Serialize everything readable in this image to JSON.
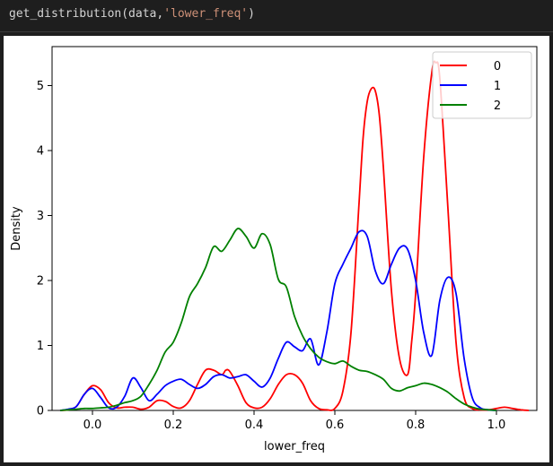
{
  "code": {
    "func": "get_distribution",
    "open": "(data,",
    "arg": "'lower_freq'",
    "close": ")"
  },
  "chart_data": {
    "type": "line",
    "xlabel": "lower_freq",
    "ylabel": "Density",
    "xlim": [
      -0.1,
      1.1
    ],
    "ylim": [
      0,
      5.6
    ],
    "x_ticks": [
      "0.0",
      "0.2",
      "0.4",
      "0.6",
      "0.8",
      "1.0"
    ],
    "y_ticks": [
      "0",
      "1",
      "2",
      "3",
      "4",
      "5"
    ],
    "legend_position": "top-right",
    "series": [
      {
        "name": "0",
        "color": "#ff0000",
        "x": [
          -0.08,
          -0.06,
          -0.04,
          -0.02,
          0.0,
          0.02,
          0.04,
          0.06,
          0.08,
          0.1,
          0.12,
          0.14,
          0.16,
          0.18,
          0.2,
          0.22,
          0.24,
          0.26,
          0.28,
          0.3,
          0.32,
          0.33,
          0.34,
          0.36,
          0.38,
          0.4,
          0.42,
          0.44,
          0.46,
          0.48,
          0.5,
          0.52,
          0.54,
          0.56,
          0.58,
          0.6,
          0.62,
          0.64,
          0.66,
          0.67,
          0.68,
          0.69,
          0.7,
          0.71,
          0.72,
          0.74,
          0.76,
          0.78,
          0.79,
          0.8,
          0.82,
          0.84,
          0.85,
          0.86,
          0.88,
          0.9,
          0.92,
          0.94,
          0.96,
          0.98,
          1.0,
          1.02,
          1.04,
          1.06,
          1.08
        ],
        "y": [
          0.0,
          0.01,
          0.06,
          0.25,
          0.38,
          0.32,
          0.12,
          0.04,
          0.05,
          0.05,
          0.02,
          0.05,
          0.15,
          0.14,
          0.06,
          0.04,
          0.15,
          0.4,
          0.62,
          0.62,
          0.55,
          0.62,
          0.6,
          0.38,
          0.12,
          0.04,
          0.05,
          0.18,
          0.4,
          0.55,
          0.55,
          0.42,
          0.15,
          0.03,
          0.01,
          0.03,
          0.3,
          1.2,
          3.2,
          4.2,
          4.75,
          4.95,
          4.92,
          4.55,
          3.75,
          1.85,
          0.8,
          0.55,
          1.05,
          1.8,
          3.9,
          5.2,
          5.35,
          5.1,
          3.1,
          1.05,
          0.2,
          0.03,
          0.01,
          0.01,
          0.03,
          0.05,
          0.03,
          0.01,
          0.0
        ]
      },
      {
        "name": "1",
        "color": "#0000ff",
        "x": [
          -0.08,
          -0.06,
          -0.04,
          -0.02,
          0.0,
          0.02,
          0.04,
          0.06,
          0.08,
          0.1,
          0.12,
          0.14,
          0.16,
          0.18,
          0.2,
          0.22,
          0.24,
          0.26,
          0.28,
          0.3,
          0.32,
          0.34,
          0.36,
          0.38,
          0.4,
          0.42,
          0.44,
          0.46,
          0.48,
          0.5,
          0.52,
          0.54,
          0.56,
          0.58,
          0.6,
          0.62,
          0.64,
          0.66,
          0.68,
          0.7,
          0.72,
          0.74,
          0.76,
          0.78,
          0.8,
          0.82,
          0.84,
          0.86,
          0.88,
          0.9,
          0.92,
          0.94,
          0.96,
          0.98,
          1.0
        ],
        "y": [
          0.0,
          0.02,
          0.06,
          0.25,
          0.34,
          0.2,
          0.04,
          0.05,
          0.22,
          0.5,
          0.35,
          0.15,
          0.25,
          0.38,
          0.45,
          0.48,
          0.4,
          0.34,
          0.4,
          0.52,
          0.55,
          0.5,
          0.52,
          0.55,
          0.45,
          0.36,
          0.5,
          0.8,
          1.05,
          0.98,
          0.92,
          1.1,
          0.7,
          1.2,
          1.95,
          2.25,
          2.5,
          2.75,
          2.68,
          2.15,
          1.95,
          2.25,
          2.5,
          2.48,
          2.0,
          1.2,
          0.85,
          1.7,
          2.05,
          1.8,
          0.8,
          0.2,
          0.04,
          0.01,
          0.0
        ]
      },
      {
        "name": "2",
        "color": "#008000",
        "x": [
          -0.08,
          -0.06,
          -0.04,
          -0.02,
          0.0,
          0.02,
          0.04,
          0.06,
          0.08,
          0.1,
          0.12,
          0.14,
          0.16,
          0.18,
          0.2,
          0.22,
          0.24,
          0.26,
          0.28,
          0.3,
          0.32,
          0.34,
          0.36,
          0.38,
          0.4,
          0.42,
          0.44,
          0.46,
          0.48,
          0.5,
          0.52,
          0.54,
          0.56,
          0.58,
          0.6,
          0.62,
          0.64,
          0.66,
          0.68,
          0.7,
          0.72,
          0.74,
          0.76,
          0.78,
          0.8,
          0.82,
          0.84,
          0.86,
          0.88,
          0.9,
          0.92,
          0.94,
          0.96,
          0.98,
          1.0
        ],
        "y": [
          0.0,
          0.01,
          0.02,
          0.03,
          0.03,
          0.04,
          0.05,
          0.08,
          0.12,
          0.15,
          0.22,
          0.4,
          0.62,
          0.9,
          1.05,
          1.35,
          1.75,
          1.95,
          2.2,
          2.52,
          2.45,
          2.62,
          2.8,
          2.68,
          2.5,
          2.72,
          2.55,
          2.02,
          1.9,
          1.45,
          1.15,
          0.95,
          0.82,
          0.75,
          0.72,
          0.76,
          0.68,
          0.62,
          0.6,
          0.55,
          0.48,
          0.34,
          0.3,
          0.35,
          0.38,
          0.42,
          0.4,
          0.35,
          0.28,
          0.18,
          0.1,
          0.05,
          0.02,
          0.01,
          0.0
        ]
      }
    ]
  }
}
